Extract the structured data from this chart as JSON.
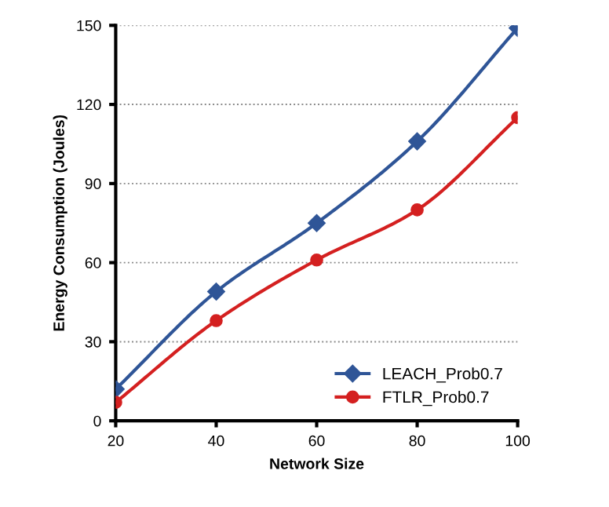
{
  "chart_data": {
    "type": "line",
    "xlabel": "Network Size",
    "ylabel": "Energy Consumption (Joules)",
    "x": [
      20,
      40,
      60,
      80,
      100
    ],
    "series": [
      {
        "name": "LEACH_Prob0.7",
        "color": "#2f5597",
        "marker": "diamond",
        "values": [
          12,
          49,
          75,
          106,
          149
        ]
      },
      {
        "name": "FTLR_Prob0.7",
        "color": "#d42020",
        "marker": "circle",
        "values": [
          7,
          38,
          61,
          80,
          115
        ]
      }
    ],
    "xlim": [
      20,
      100
    ],
    "xticks": [
      20,
      40,
      60,
      80,
      100
    ],
    "ylim": [
      0,
      150
    ],
    "yticks": [
      0,
      30,
      60,
      90,
      120,
      150
    ],
    "grid": "y",
    "legend": "bottom right",
    "line_style": "solid"
  }
}
